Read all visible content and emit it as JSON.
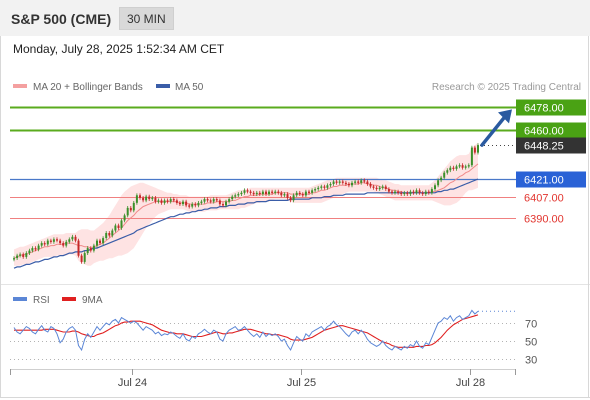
{
  "header": {
    "title": "S&P 500 (CME)",
    "timeframe": "30 MIN"
  },
  "datetime": "Monday, July 28, 2025 1:52:34 AM CET",
  "legend": {
    "bb_label": "MA 20 + Bollinger Bands",
    "ma50_label": "MA 50",
    "rsi_label": "RSI",
    "ma9_label": "9MA"
  },
  "credit": "Research © 2025 Trading Central",
  "colors": {
    "up_line": "#5aab1e",
    "up_label": "#4aa214",
    "blue_line": "#4a78c9",
    "blue_label": "#2a62d6",
    "red_line": "#f08080",
    "red_text": "#e2352f",
    "price_label": "#333333",
    "arrow": "#2a5aa0",
    "bb_fill": "#fddada",
    "ma20": "#f08a8a",
    "ma50": "#3a5da8",
    "rsi": "#5b86d6",
    "rsi_ma": "#e02020"
  },
  "chart_data": [
    {
      "type": "candlestick",
      "title": "S&P 500 (CME)",
      "timeframe": "30 MIN",
      "x_ticks": [
        "Jul 24",
        "Jul 25",
        "Jul 28"
      ],
      "ylim": [
        6360,
        6490
      ],
      "levels": [
        {
          "value": 6478.0,
          "label": "6478.00",
          "kind": "target"
        },
        {
          "value": 6460.0,
          "label": "6460.00",
          "kind": "resistance"
        },
        {
          "value": 6448.25,
          "label": "6448.25",
          "kind": "last_price"
        },
        {
          "value": 6421.0,
          "label": "6421.00",
          "kind": "pivot"
        },
        {
          "value": 6407.0,
          "label": "6407.00",
          "kind": "support"
        },
        {
          "value": 6390.0,
          "label": "6390.00",
          "kind": "support"
        }
      ],
      "close": [
        6358,
        6360,
        6361,
        6359,
        6362,
        6364,
        6366,
        6365,
        6368,
        6370,
        6369,
        6372,
        6371,
        6373,
        6372,
        6370,
        6368,
        6371,
        6373,
        6375,
        6372,
        6360,
        6355,
        6362,
        6366,
        6364,
        6368,
        6372,
        6370,
        6374,
        6378,
        6376,
        6380,
        6384,
        6382,
        6388,
        6392,
        6398,
        6396,
        6402,
        6408,
        6406,
        6404,
        6407,
        6405,
        6406,
        6403,
        6404,
        6402,
        6404,
        6403,
        6405,
        6404,
        6402,
        6401,
        6403,
        6400,
        6399,
        6401,
        6400,
        6402,
        6403,
        6405,
        6404,
        6403,
        6405,
        6404,
        6401,
        6400,
        6403,
        6405,
        6407,
        6408,
        6409,
        6410,
        6412,
        6411,
        6410,
        6409,
        6410,
        6409,
        6411,
        6409,
        6411,
        6410,
        6411,
        6410,
        6408,
        6409,
        6406,
        6404,
        6408,
        6410,
        6409,
        6408,
        6411,
        6410,
        6412,
        6413,
        6414,
        6415,
        6414,
        6416,
        6417,
        6419,
        6418,
        6419,
        6418,
        6417,
        6416,
        6418,
        6419,
        6418,
        6420,
        6419,
        6417,
        6415,
        6414,
        6413,
        6414,
        6415,
        6413,
        6411,
        6410,
        6411,
        6410,
        6409,
        6410,
        6409,
        6411,
        6410,
        6412,
        6410,
        6409,
        6411,
        6410,
        6413,
        6416,
        6420,
        6422,
        6426,
        6428,
        6430,
        6429,
        6431,
        6432,
        6430,
        6431,
        6432,
        6446,
        6442,
        6448
      ],
      "ma20": [
        6358,
        6359,
        6360,
        6361,
        6361,
        6362,
        6363,
        6364,
        6365,
        6366,
        6367,
        6367,
        6368,
        6368,
        6369,
        6369,
        6369,
        6370,
        6370,
        6370,
        6369,
        6368,
        6368,
        6367,
        6367,
        6366,
        6367,
        6368,
        6369,
        6370,
        6372,
        6374,
        6376,
        6378,
        6380,
        6382,
        6385,
        6388,
        6390,
        6392,
        6395,
        6397,
        6399,
        6400,
        6401,
        6402,
        6403,
        6403,
        6403,
        6403,
        6403,
        6403,
        6403,
        6403,
        6402,
        6402,
        6402,
        6401,
        6401,
        6401,
        6401,
        6401,
        6401,
        6402,
        6402,
        6402,
        6403,
        6403,
        6403,
        6403,
        6403,
        6404,
        6404,
        6405,
        6406,
        6407,
        6407,
        6408,
        6408,
        6408,
        6409,
        6409,
        6409,
        6409,
        6409,
        6410,
        6410,
        6410,
        6410,
        6410,
        6409,
        6409,
        6409,
        6409,
        6409,
        6409,
        6409,
        6410,
        6410,
        6411,
        6412,
        6412,
        6413,
        6414,
        6415,
        6415,
        6416,
        6416,
        6416,
        6417,
        6417,
        6417,
        6417,
        6418,
        6418,
        6417,
        6417,
        6416,
        6416,
        6415,
        6414,
        6414,
        6413,
        6412,
        6412,
        6411,
        6411,
        6410,
        6410,
        6410,
        6410,
        6410,
        6410,
        6410,
        6410,
        6410,
        6411,
        6411,
        6412,
        6413,
        6414,
        6416,
        6418,
        6419,
        6421,
        6423,
        6424,
        6426,
        6427,
        6429,
        6431,
        6433
      ],
      "bb_upper": [
        6365,
        6366,
        6367,
        6367,
        6368,
        6369,
        6370,
        6371,
        6372,
        6373,
        6374,
        6375,
        6376,
        6377,
        6377,
        6377,
        6377,
        6378,
        6378,
        6378,
        6378,
        6380,
        6381,
        6381,
        6381,
        6380,
        6380,
        6382,
        6384,
        6386,
        6389,
        6392,
        6396,
        6400,
        6404,
        6408,
        6411,
        6413,
        6415,
        6416,
        6417,
        6418,
        6418,
        6417,
        6416,
        6415,
        6414,
        6413,
        6412,
        6411,
        6410,
        6410,
        6409,
        6409,
        6408,
        6408,
        6408,
        6407,
        6407,
        6407,
        6407,
        6407,
        6407,
        6407,
        6408,
        6408,
        6408,
        6408,
        6408,
        6408,
        6409,
        6410,
        6411,
        6412,
        6412,
        6413,
        6413,
        6414,
        6414,
        6414,
        6414,
        6414,
        6414,
        6414,
        6414,
        6414,
        6414,
        6414,
        6414,
        6414,
        6414,
        6414,
        6414,
        6414,
        6414,
        6414,
        6414,
        6415,
        6416,
        6417,
        6418,
        6419,
        6420,
        6421,
        6421,
        6422,
        6422,
        6422,
        6422,
        6422,
        6422,
        6422,
        6422,
        6422,
        6422,
        6422,
        6422,
        6422,
        6422,
        6421,
        6420,
        6420,
        6419,
        6418,
        6417,
        6417,
        6416,
        6416,
        6416,
        6416,
        6416,
        6416,
        6416,
        6416,
        6416,
        6416,
        6418,
        6420,
        6423,
        6426,
        6429,
        6432,
        6435,
        6437,
        6439,
        6440,
        6440,
        6440,
        6441,
        6446,
        6448,
        6450
      ],
      "bb_lower": [
        6352,
        6352,
        6352,
        6353,
        6353,
        6354,
        6355,
        6356,
        6357,
        6358,
        6359,
        6359,
        6359,
        6359,
        6360,
        6360,
        6360,
        6360,
        6361,
        6361,
        6360,
        6356,
        6354,
        6353,
        6352,
        6352,
        6354,
        6355,
        6356,
        6356,
        6357,
        6358,
        6358,
        6359,
        6360,
        6360,
        6361,
        6362,
        6364,
        6366,
        6370,
        6374,
        6378,
        6382,
        6385,
        6388,
        6391,
        6393,
        6394,
        6395,
        6396,
        6397,
        6397,
        6397,
        6397,
        6397,
        6396,
        6395,
        6395,
        6395,
        6395,
        6395,
        6395,
        6396,
        6396,
        6396,
        6396,
        6397,
        6397,
        6397,
        6397,
        6397,
        6397,
        6397,
        6398,
        6398,
        6399,
        6400,
        6401,
        6402,
        6402,
        6403,
        6403,
        6403,
        6404,
        6405,
        6405,
        6405,
        6405,
        6404,
        6403,
        6402,
        6402,
        6402,
        6402,
        6402,
        6402,
        6402,
        6402,
        6402,
        6402,
        6403,
        6404,
        6405,
        6406,
        6407,
        6408,
        6409,
        6410,
        6411,
        6411,
        6411,
        6411,
        6411,
        6411,
        6411,
        6411,
        6411,
        6410,
        6409,
        6408,
        6407,
        6406,
        6405,
        6404,
        6404,
        6404,
        6404,
        6404,
        6404,
        6404,
        6404,
        6404,
        6404,
        6404,
        6404,
        6404,
        6403,
        6402,
        6401,
        6400,
        6400,
        6400,
        6401,
        6402,
        6404,
        6407,
        6410,
        6412,
        6412,
        6413,
        6414
      ],
      "ma50": [
        6350,
        6351,
        6351,
        6352,
        6353,
        6353,
        6354,
        6355,
        6355,
        6356,
        6357,
        6357,
        6358,
        6359,
        6359,
        6360,
        6360,
        6361,
        6362,
        6362,
        6363,
        6363,
        6363,
        6364,
        6364,
        6365,
        6366,
        6366,
        6367,
        6368,
        6369,
        6370,
        6371,
        6372,
        6373,
        6374,
        6375,
        6376,
        6377,
        6378,
        6380,
        6381,
        6382,
        6383,
        6384,
        6385,
        6386,
        6387,
        6388,
        6389,
        6390,
        6391,
        6391,
        6392,
        6393,
        6393,
        6394,
        6394,
        6395,
        6395,
        6396,
        6396,
        6397,
        6397,
        6398,
        6398,
        6398,
        6399,
        6399,
        6399,
        6400,
        6400,
        6400,
        6401,
        6401,
        6401,
        6402,
        6402,
        6402,
        6403,
        6403,
        6403,
        6403,
        6404,
        6404,
        6404,
        6404,
        6404,
        6404,
        6404,
        6405,
        6405,
        6405,
        6405,
        6405,
        6405,
        6405,
        6406,
        6406,
        6406,
        6406,
        6407,
        6407,
        6407,
        6408,
        6408,
        6408,
        6408,
        6409,
        6409,
        6409,
        6409,
        6409,
        6409,
        6409,
        6410,
        6410,
        6410,
        6410,
        6410,
        6410,
        6410,
        6410,
        6410,
        6410,
        6410,
        6410,
        6410,
        6410,
        6410,
        6410,
        6410,
        6410,
        6410,
        6410,
        6410,
        6410,
        6410,
        6411,
        6411,
        6412,
        6412,
        6413,
        6413,
        6414,
        6415,
        6416,
        6417,
        6418,
        6419,
        6420,
        6421
      ]
    },
    {
      "type": "line",
      "title": "RSI",
      "yticks": [
        30,
        50,
        70
      ],
      "ylim": [
        20,
        85
      ],
      "series": [
        {
          "name": "RSI",
          "values": [
            65,
            60,
            58,
            62,
            66,
            64,
            60,
            58,
            63,
            67,
            62,
            60,
            66,
            64,
            58,
            48,
            52,
            60,
            64,
            66,
            62,
            45,
            40,
            52,
            58,
            54,
            60,
            66,
            62,
            66,
            70,
            68,
            72,
            74,
            70,
            76,
            74,
            72,
            70,
            72,
            70,
            66,
            62,
            66,
            64,
            62,
            58,
            60,
            56,
            58,
            57,
            60,
            58,
            55,
            53,
            58,
            52,
            50,
            55,
            53,
            58,
            60,
            63,
            60,
            58,
            62,
            60,
            52,
            50,
            58,
            62,
            64,
            66,
            62,
            63,
            66,
            62,
            58,
            55,
            58,
            54,
            60,
            55,
            58,
            56,
            58,
            55,
            50,
            52,
            45,
            40,
            48,
            55,
            52,
            50,
            58,
            55,
            60,
            62,
            64,
            66,
            62,
            66,
            68,
            72,
            68,
            66,
            62,
            58,
            55,
            60,
            62,
            58,
            62,
            58,
            52,
            48,
            46,
            44,
            46,
            50,
            45,
            42,
            40,
            44,
            42,
            40,
            44,
            42,
            46,
            44,
            50,
            44,
            42,
            48,
            46,
            54,
            62,
            70,
            72,
            76,
            74,
            78,
            72,
            76,
            78,
            74,
            76,
            78,
            84,
            80,
            83
          ]
        },
        {
          "name": "9MA",
          "values": [
            62,
            62,
            62,
            62,
            62,
            62,
            62,
            62,
            62,
            62,
            63,
            63,
            63,
            63,
            62,
            61,
            60,
            60,
            60,
            61,
            61,
            60,
            58,
            57,
            56,
            55,
            55,
            57,
            58,
            59,
            61,
            63,
            65,
            67,
            68,
            70,
            71,
            71,
            72,
            72,
            72,
            72,
            71,
            70,
            69,
            68,
            66,
            64,
            62,
            61,
            60,
            59,
            59,
            58,
            58,
            58,
            57,
            56,
            55,
            55,
            55,
            55,
            56,
            57,
            58,
            59,
            60,
            59,
            58,
            58,
            59,
            59,
            60,
            61,
            62,
            63,
            63,
            63,
            62,
            61,
            60,
            59,
            58,
            58,
            57,
            57,
            57,
            56,
            55,
            54,
            52,
            51,
            51,
            51,
            51,
            52,
            53,
            54,
            56,
            58,
            60,
            62,
            63,
            64,
            65,
            66,
            67,
            67,
            66,
            65,
            64,
            63,
            62,
            61,
            60,
            59,
            57,
            55,
            53,
            51,
            49,
            48,
            47,
            45,
            44,
            43,
            43,
            43,
            43,
            43,
            43,
            44,
            44,
            44,
            45,
            45,
            46,
            48,
            51,
            54,
            58,
            62,
            65,
            68,
            70,
            72,
            74,
            75,
            76,
            77,
            78,
            79
          ]
        }
      ]
    }
  ]
}
